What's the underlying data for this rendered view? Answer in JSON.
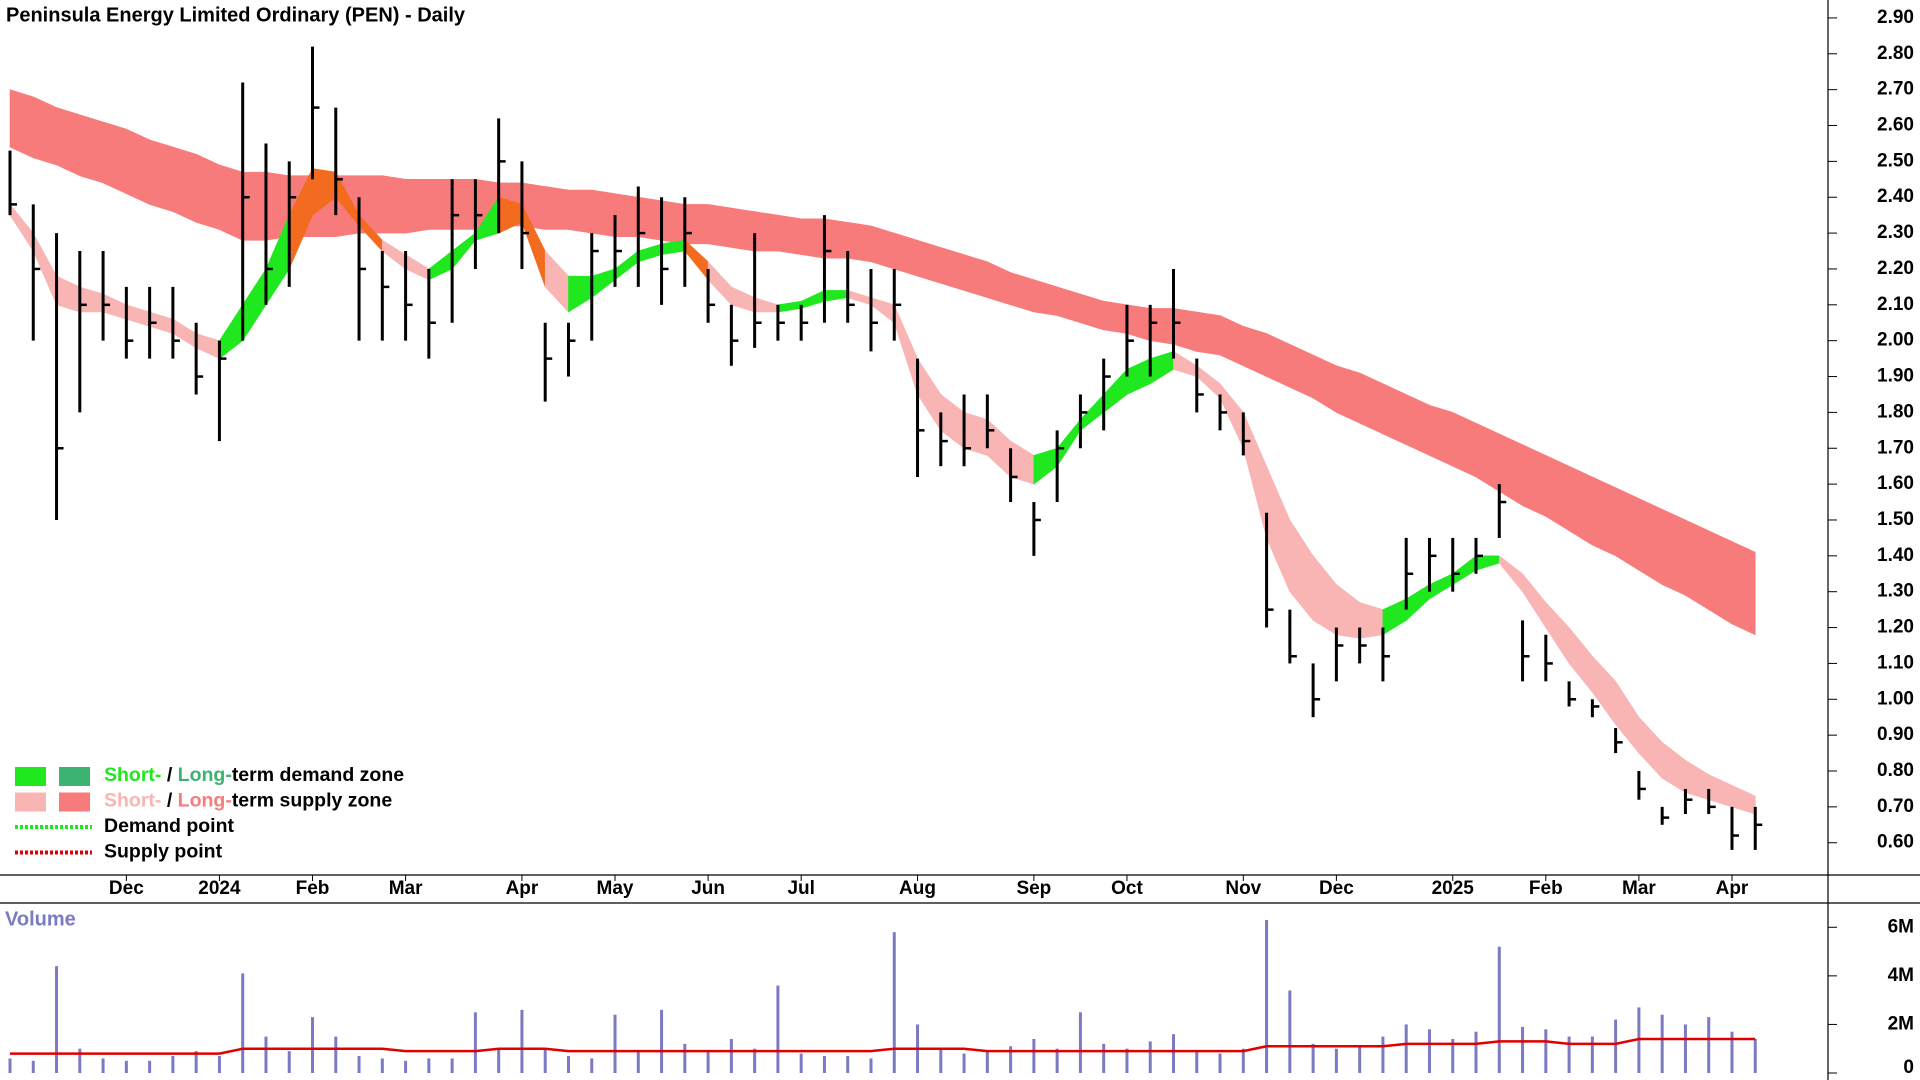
{
  "chart_data": [
    {
      "type": "ohlc",
      "title": "Peninsula Energy Limited Ordinary (PEN) - Daily",
      "categories": [
        null,
        null,
        null,
        null,
        null,
        "Dec",
        null,
        null,
        null,
        "2024",
        null,
        null,
        null,
        "Feb",
        null,
        null,
        null,
        "Mar",
        null,
        null,
        null,
        null,
        "Apr",
        null,
        null,
        null,
        "May",
        null,
        null,
        null,
        "Jun",
        null,
        null,
        null,
        "Jul",
        null,
        null,
        null,
        null,
        "Aug",
        null,
        null,
        null,
        null,
        "Sep",
        null,
        null,
        null,
        "Oct",
        null,
        null,
        null,
        null,
        "Nov",
        null,
        null,
        null,
        "Dec",
        null,
        null,
        null,
        null,
        "2025",
        null,
        null,
        null,
        "Feb",
        null,
        null,
        null,
        "Mar",
        null,
        null,
        null,
        "Apr",
        null
      ],
      "high": [
        2.53,
        2.38,
        2.3,
        2.25,
        2.25,
        2.15,
        2.15,
        2.15,
        2.05,
        2.0,
        2.72,
        2.55,
        2.5,
        2.82,
        2.65,
        2.4,
        2.25,
        2.25,
        2.2,
        2.45,
        2.45,
        2.62,
        2.5,
        2.05,
        2.05,
        2.3,
        2.35,
        2.43,
        2.4,
        2.4,
        2.2,
        2.1,
        2.3,
        2.1,
        2.1,
        2.35,
        2.25,
        2.2,
        2.2,
        1.95,
        1.8,
        1.85,
        1.85,
        1.7,
        1.55,
        1.75,
        1.85,
        1.95,
        2.1,
        2.1,
        2.2,
        1.95,
        1.85,
        1.8,
        1.52,
        1.25,
        1.1,
        1.2,
        1.2,
        1.2,
        1.45,
        1.45,
        1.45,
        1.45,
        1.6,
        1.22,
        1.18,
        1.05,
        1.0,
        0.92,
        0.8,
        0.7,
        0.75,
        0.75,
        0.7,
        0.7
      ],
      "low": [
        2.35,
        2.0,
        1.5,
        1.8,
        2.0,
        1.95,
        1.95,
        1.95,
        1.85,
        1.72,
        2.0,
        2.1,
        2.15,
        2.45,
        2.35,
        2.0,
        2.0,
        2.0,
        1.95,
        2.05,
        2.2,
        2.3,
        2.2,
        1.83,
        1.9,
        2.0,
        2.15,
        2.15,
        2.1,
        2.15,
        2.05,
        1.93,
        1.98,
        2.0,
        2.0,
        2.05,
        2.05,
        1.97,
        2.0,
        1.62,
        1.65,
        1.65,
        1.7,
        1.55,
        1.4,
        1.55,
        1.7,
        1.75,
        1.9,
        1.9,
        1.95,
        1.8,
        1.75,
        1.68,
        1.2,
        1.1,
        0.95,
        1.05,
        1.1,
        1.05,
        1.25,
        1.3,
        1.3,
        1.35,
        1.45,
        1.05,
        1.05,
        0.98,
        0.95,
        0.85,
        0.72,
        0.65,
        0.68,
        0.68,
        0.58,
        0.58
      ],
      "close": [
        2.38,
        2.2,
        1.7,
        2.1,
        2.1,
        2.0,
        2.05,
        2.0,
        1.9,
        1.95,
        2.4,
        2.2,
        2.4,
        2.65,
        2.45,
        2.2,
        2.15,
        2.1,
        2.05,
        2.35,
        2.35,
        2.5,
        2.3,
        1.95,
        2.0,
        2.25,
        2.25,
        2.3,
        2.2,
        2.3,
        2.1,
        2.0,
        2.05,
        2.05,
        2.05,
        2.25,
        2.1,
        2.05,
        2.1,
        1.75,
        1.72,
        1.7,
        1.75,
        1.62,
        1.5,
        1.7,
        1.8,
        1.9,
        2.0,
        2.05,
        2.05,
        1.85,
        1.8,
        1.72,
        1.25,
        1.12,
        1.0,
        1.15,
        1.15,
        1.12,
        1.35,
        1.4,
        1.35,
        1.4,
        1.55,
        1.12,
        1.1,
        1.0,
        0.98,
        0.88,
        0.75,
        0.67,
        0.72,
        0.7,
        0.62,
        0.65
      ],
      "lt_top": [
        2.7,
        2.68,
        2.65,
        2.63,
        2.61,
        2.59,
        2.56,
        2.54,
        2.52,
        2.49,
        2.47,
        2.47,
        2.46,
        2.46,
        2.46,
        2.46,
        2.46,
        2.45,
        2.45,
        2.45,
        2.45,
        2.44,
        2.44,
        2.43,
        2.42,
        2.42,
        2.41,
        2.4,
        2.39,
        2.38,
        2.38,
        2.37,
        2.36,
        2.35,
        2.34,
        2.34,
        2.33,
        2.32,
        2.3,
        2.28,
        2.26,
        2.24,
        2.22,
        2.19,
        2.17,
        2.15,
        2.13,
        2.11,
        2.1,
        2.09,
        2.09,
        2.08,
        2.07,
        2.04,
        2.02,
        1.99,
        1.96,
        1.93,
        1.91,
        1.88,
        1.85,
        1.82,
        1.8,
        1.77,
        1.74,
        1.71,
        1.68,
        1.65,
        1.62,
        1.59,
        1.56,
        1.53,
        1.5,
        1.47,
        1.44,
        1.41
      ],
      "lt_bottom": [
        2.54,
        2.51,
        2.49,
        2.46,
        2.44,
        2.41,
        2.38,
        2.36,
        2.33,
        2.31,
        2.28,
        2.28,
        2.29,
        2.29,
        2.29,
        2.3,
        2.3,
        2.3,
        2.31,
        2.31,
        2.31,
        2.32,
        2.32,
        2.31,
        2.31,
        2.3,
        2.29,
        2.29,
        2.28,
        2.27,
        2.27,
        2.26,
        2.25,
        2.25,
        2.24,
        2.23,
        2.23,
        2.22,
        2.2,
        2.18,
        2.16,
        2.14,
        2.12,
        2.1,
        2.08,
        2.07,
        2.05,
        2.03,
        2.02,
        2.0,
        1.99,
        1.97,
        1.96,
        1.93,
        1.9,
        1.87,
        1.84,
        1.8,
        1.77,
        1.74,
        1.71,
        1.68,
        1.65,
        1.62,
        1.58,
        1.54,
        1.51,
        1.47,
        1.43,
        1.4,
        1.36,
        1.32,
        1.29,
        1.25,
        1.21,
        1.18
      ],
      "st_top": [
        2.38,
        2.3,
        2.18,
        2.15,
        2.13,
        2.1,
        2.08,
        2.06,
        2.02,
        2.0,
        2.1,
        2.2,
        2.35,
        2.48,
        2.47,
        2.35,
        2.28,
        2.24,
        2.2,
        2.25,
        2.3,
        2.4,
        2.38,
        2.25,
        2.18,
        2.18,
        2.2,
        2.25,
        2.27,
        2.28,
        2.22,
        2.15,
        2.12,
        2.1,
        2.11,
        2.14,
        2.14,
        2.12,
        2.1,
        1.95,
        1.85,
        1.8,
        1.78,
        1.72,
        1.68,
        1.7,
        1.78,
        1.85,
        1.92,
        1.95,
        1.97,
        1.93,
        1.88,
        1.8,
        1.65,
        1.5,
        1.4,
        1.32,
        1.27,
        1.25,
        1.28,
        1.32,
        1.35,
        1.4,
        1.4,
        1.35,
        1.27,
        1.2,
        1.12,
        1.05,
        0.95,
        0.88,
        0.83,
        0.79,
        0.76,
        0.73
      ],
      "st_bottom": [
        2.35,
        2.25,
        2.1,
        2.08,
        2.08,
        2.06,
        2.04,
        2.02,
        1.98,
        1.95,
        2.0,
        2.1,
        2.2,
        2.35,
        2.4,
        2.32,
        2.25,
        2.2,
        2.17,
        2.2,
        2.28,
        2.3,
        2.33,
        2.15,
        2.08,
        2.12,
        2.17,
        2.22,
        2.24,
        2.25,
        2.17,
        2.1,
        2.08,
        2.08,
        2.09,
        2.11,
        2.12,
        2.1,
        2.05,
        1.85,
        1.75,
        1.7,
        1.68,
        1.62,
        1.6,
        1.65,
        1.75,
        1.8,
        1.85,
        1.88,
        1.92,
        1.9,
        1.84,
        1.7,
        1.45,
        1.3,
        1.22,
        1.18,
        1.17,
        1.18,
        1.22,
        1.28,
        1.32,
        1.36,
        1.38,
        1.3,
        1.2,
        1.1,
        1.02,
        0.93,
        0.85,
        0.78,
        0.74,
        0.72,
        0.7,
        0.68
      ],
      "colors": {
        "lt_supply": "#f87b7b",
        "st_supply": "#f9b4b4",
        "st_demand": "#1fe81f",
        "overlap": "#f26b1f",
        "price": "#000000",
        "axis": "#000000"
      },
      "ylim": [
        0.51,
        2.95
      ],
      "yticks": [
        {
          "value": 0.6,
          "label": "0.60"
        },
        {
          "value": 0.7,
          "label": "0.70"
        },
        {
          "value": 0.8,
          "label": "0.80"
        },
        {
          "value": 0.9,
          "label": "0.90"
        },
        {
          "value": 1.0,
          "label": "1.00"
        },
        {
          "value": 1.1,
          "label": "1.10"
        },
        {
          "value": 1.2,
          "label": "1.20"
        },
        {
          "value": 1.3,
          "label": "1.30"
        },
        {
          "value": 1.4,
          "label": "1.40"
        },
        {
          "value": 1.5,
          "label": "1.50"
        },
        {
          "value": 1.6,
          "label": "1.60"
        },
        {
          "value": 1.7,
          "label": "1.70"
        },
        {
          "value": 1.8,
          "label": "1.80"
        },
        {
          "value": 1.9,
          "label": "1.90"
        },
        {
          "value": 2.0,
          "label": "2.00"
        },
        {
          "value": 2.1,
          "label": "2.10"
        },
        {
          "value": 2.2,
          "label": "2.20"
        },
        {
          "value": 2.3,
          "label": "2.30"
        },
        {
          "value": 2.4,
          "label": "2.40"
        },
        {
          "value": 2.5,
          "label": "2.50"
        },
        {
          "value": 2.6,
          "label": "2.60"
        },
        {
          "value": 2.7,
          "label": "2.70"
        },
        {
          "value": 2.8,
          "label": "2.80"
        },
        {
          "value": 2.9,
          "label": "2.90"
        }
      ],
      "legend": {
        "position": "lower-left",
        "items": [
          {
            "swatches": [
              "#1fe81f",
              "#3cb371"
            ],
            "parts": [
              {
                "text": "Short-",
                "color": "#1fe81f"
              },
              {
                "text": " / ",
                "color": "#000000"
              },
              {
                "text": "Long-",
                "color": "#3cb371"
              },
              {
                "text": "term demand zone",
                "color": "#000000"
              }
            ]
          },
          {
            "swatches": [
              "#f9b4b4",
              "#f87b7b"
            ],
            "parts": [
              {
                "text": "Short-",
                "color": "#f9b4b4"
              },
              {
                "text": " / ",
                "color": "#000000"
              },
              {
                "text": "Long-",
                "color": "#f87b7b"
              },
              {
                "text": "term supply zone",
                "color": "#000000"
              }
            ]
          },
          {
            "dotted": "#1fe81f",
            "parts": [
              {
                "text": "Demand point",
                "color": "#000000"
              }
            ]
          },
          {
            "dotted": "#e00000",
            "parts": [
              {
                "text": "Supply point",
                "color": "#000000"
              }
            ]
          }
        ]
      }
    },
    {
      "type": "bar",
      "title": "Volume",
      "values": [
        600000,
        500000,
        4400000,
        1000000,
        600000,
        500000,
        500000,
        700000,
        900000,
        700000,
        4100000,
        1500000,
        900000,
        2300000,
        1500000,
        700000,
        600000,
        500000,
        600000,
        600000,
        2500000,
        1000000,
        2600000,
        1000000,
        700000,
        600000,
        2400000,
        900000,
        2600000,
        1200000,
        900000,
        1400000,
        1000000,
        3600000,
        800000,
        700000,
        700000,
        600000,
        5800000,
        2000000,
        1000000,
        800000,
        900000,
        1100000,
        1400000,
        1000000,
        2500000,
        1200000,
        1000000,
        1300000,
        1600000,
        900000,
        800000,
        1000000,
        6300000,
        3400000,
        1200000,
        1000000,
        1100000,
        1500000,
        2000000,
        1800000,
        1400000,
        1700000,
        5200000,
        1900000,
        1800000,
        1500000,
        1500000,
        2200000,
        2700000,
        2400000,
        2000000,
        2300000,
        1700000,
        1400000
      ],
      "moving_average": [
        800000,
        800000,
        800000,
        800000,
        800000,
        800000,
        800000,
        800000,
        800000,
        800000,
        1000000,
        1000000,
        1000000,
        1000000,
        1000000,
        1000000,
        1000000,
        900000,
        900000,
        900000,
        900000,
        1000000,
        1000000,
        1000000,
        900000,
        900000,
        900000,
        900000,
        900000,
        900000,
        900000,
        900000,
        900000,
        900000,
        900000,
        900000,
        900000,
        900000,
        1000000,
        1000000,
        1000000,
        1000000,
        900000,
        900000,
        900000,
        900000,
        900000,
        900000,
        900000,
        900000,
        900000,
        900000,
        900000,
        900000,
        1100000,
        1100000,
        1100000,
        1100000,
        1100000,
        1100000,
        1200000,
        1200000,
        1200000,
        1200000,
        1300000,
        1300000,
        1300000,
        1200000,
        1200000,
        1200000,
        1400000,
        1400000,
        1400000,
        1400000,
        1400000,
        1400000
      ],
      "color": "#7b7bc4",
      "ma_color": "#e00000",
      "title_color": "#7b7bc4",
      "ylim": [
        0,
        7000000
      ],
      "yticks": [
        0,
        {
          "value": 2000000,
          "label": "2M"
        },
        {
          "value": 4000000,
          "label": "4M"
        },
        {
          "value": 6000000,
          "label": "6M"
        }
      ]
    }
  ]
}
